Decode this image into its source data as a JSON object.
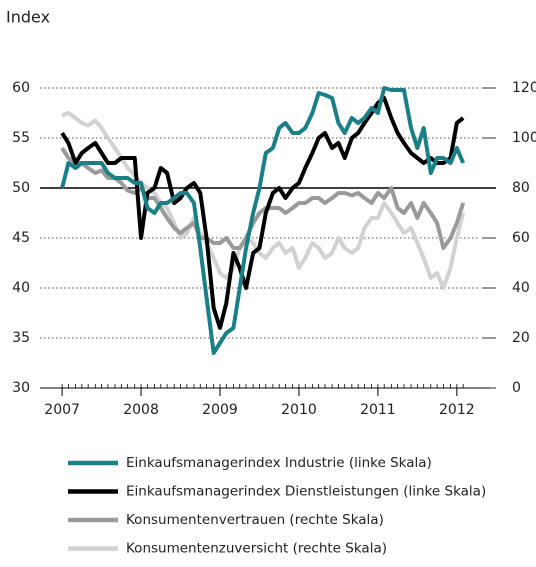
{
  "chart_data": {
    "type": "line",
    "subtitle": "Index",
    "x": [
      2007,
      2007.08,
      2007.17,
      2007.25,
      2007.33,
      2007.42,
      2007.5,
      2007.58,
      2007.67,
      2007.75,
      2007.83,
      2007.92,
      2008,
      2008.08,
      2008.17,
      2008.25,
      2008.33,
      2008.42,
      2008.5,
      2008.58,
      2008.67,
      2008.75,
      2008.83,
      2008.92,
      2009,
      2009.08,
      2009.17,
      2009.25,
      2009.33,
      2009.42,
      2009.5,
      2009.58,
      2009.67,
      2009.75,
      2009.83,
      2009.92,
      2010,
      2010.08,
      2010.17,
      2010.25,
      2010.33,
      2010.42,
      2010.5,
      2010.58,
      2010.67,
      2010.75,
      2010.83,
      2010.92,
      2011,
      2011.08,
      2011.17,
      2011.25,
      2011.33,
      2011.42,
      2011.5,
      2011.58,
      2011.67,
      2011.75,
      2011.83,
      2011.92,
      2012,
      2012.08
    ],
    "xlim": [
      2006.72,
      2012.42
    ],
    "xticks": [
      2007,
      2008,
      2009,
      2010,
      2011,
      2012
    ],
    "ylim": [
      30,
      62
    ],
    "yticks": [
      30,
      35,
      40,
      45,
      50,
      55,
      60
    ],
    "y2lim": [
      0,
      128
    ],
    "y2ticks": [
      0,
      20,
      40,
      60,
      80,
      100,
      120
    ],
    "hline": 50,
    "grid": true,
    "series": [
      {
        "name": "Einkaufsmanagerindex Industrie (linke Skala)",
        "color": "#1a7f86",
        "values": [
          50,
          52.5,
          52,
          52.5,
          52.5,
          52.5,
          52.5,
          51.5,
          51,
          51,
          51,
          50.5,
          50.5,
          48,
          47.5,
          48.5,
          48.5,
          49,
          49.5,
          49.5,
          48.5,
          44,
          39,
          33.5,
          34.5,
          35.5,
          36,
          40,
          44,
          47.5,
          50,
          53.5,
          54,
          56,
          56.5,
          55.5,
          55.5,
          56,
          57.5,
          59.5,
          59.3,
          59,
          56.5,
          55.5,
          57,
          56.5,
          57,
          58,
          57.5,
          60,
          59.8,
          59.8,
          59.8,
          56,
          54,
          56,
          51.5,
          53,
          53,
          52.5,
          54,
          52.5
        ]
      },
      {
        "name": "Einkaufsmanagerindex Dienstleistungen (linke Skala)",
        "color": "#000000",
        "values": [
          55.5,
          54.5,
          52.5,
          53.5,
          54,
          54.5,
          53.5,
          52.5,
          52.5,
          53,
          53,
          53,
          45,
          49.5,
          50,
          52,
          51.5,
          48.5,
          49,
          50,
          50.5,
          49.5,
          45,
          38,
          36,
          38.5,
          43.5,
          42,
          40,
          43.5,
          44,
          47.5,
          49.5,
          50,
          49,
          50,
          50.5,
          52,
          53.5,
          55,
          55.5,
          54,
          54.5,
          53,
          55,
          55.5,
          56.5,
          57.5,
          58.5,
          59,
          57,
          55.5,
          54.5,
          53.5,
          53,
          52.5,
          53,
          52.5,
          52.5,
          53,
          56.5,
          57
        ]
      },
      {
        "name": "Konsumentenvertrauen (rechte Skala)",
        "color": "#9a9a9a",
        "axis": "y2",
        "values": [
          96,
          92,
          90,
          90,
          88,
          86,
          87,
          84,
          84,
          82,
          79,
          78,
          80,
          76,
          76,
          72,
          68,
          64,
          62,
          64,
          66,
          60,
          60,
          58,
          58,
          60,
          56,
          56,
          60,
          66,
          70,
          72,
          72,
          72,
          70,
          72,
          74,
          74,
          76,
          76,
          74,
          76,
          78,
          78,
          77,
          78,
          76,
          74,
          78,
          76,
          80,
          72,
          70,
          74,
          68,
          74,
          70,
          66,
          56,
          60,
          66,
          74
        ]
      },
      {
        "name": "Konsumentenzuversicht (rechte Skala)",
        "color": "#d2d2d2",
        "axis": "y2",
        "values": [
          109,
          110,
          108,
          106,
          105,
          107,
          104,
          100,
          96,
          92,
          88,
          85,
          82,
          80,
          78,
          74,
          72,
          66,
          60,
          62,
          68,
          62,
          58,
          52,
          46,
          44,
          48,
          56,
          60,
          58,
          54,
          52,
          56,
          58,
          54,
          56,
          48,
          52,
          58,
          56,
          52,
          54,
          60,
          56,
          54,
          56,
          64,
          68,
          68,
          74,
          70,
          66,
          62,
          64,
          58,
          52,
          44,
          46,
          40,
          48,
          60,
          70
        ]
      }
    ]
  }
}
